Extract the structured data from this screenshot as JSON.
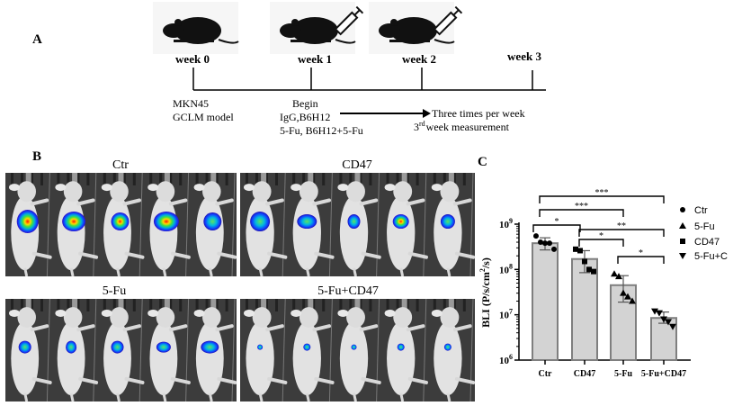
{
  "panel_a": {
    "label": "A",
    "weeks": [
      "week 0",
      "week 1",
      "week 2",
      "week 3"
    ],
    "note_week0": [
      "MKN45",
      "GCLM model"
    ],
    "note_week1": [
      "Begin",
      "IgG,B6H12",
      "5-Fu, B6H12+5-Fu"
    ],
    "note_arrow": "Three times per week",
    "note_measure_sup": "rd",
    "note_measure_pre": "3",
    "note_measure_post": "week measurement"
  },
  "panel_b": {
    "label": "B",
    "groups": [
      "Ctr",
      "CD47",
      "5-Fu",
      "5-Fu+CD47"
    ]
  },
  "chart_data": {
    "label": "C",
    "type": "bar",
    "categories": [
      "Ctr",
      "CD47",
      "5-Fu",
      "5-Fu+CD47"
    ],
    "values": [
      380000000,
      170000000,
      45000000,
      8500000
    ],
    "error_low": [
      270000000,
      85000000,
      19000000,
      6500000
    ],
    "error_high": [
      500000000,
      260000000,
      73000000,
      11500000
    ],
    "points": [
      [
        550000000,
        400000000,
        380000000,
        380000000,
        280000000
      ],
      [
        280000000,
        260000000,
        150000000,
        100000000,
        90000000
      ],
      [
        80000000,
        70000000,
        30000000,
        25000000,
        20000000
      ],
      [
        12000000,
        11000000,
        8000000,
        7000000,
        5500000
      ]
    ],
    "markers": [
      "circle",
      "square",
      "triangle-up",
      "triangle-down"
    ],
    "ylabel": "BLI (P/s/cm",
    "ylabel_sup": "2",
    "ylabel_end": "/s)",
    "yscale": "log",
    "ylim": [
      1000000,
      1000000000
    ],
    "yticks": [
      "10",
      "10",
      "10",
      "10"
    ],
    "ytick_exps": [
      "6",
      "7",
      "8",
      "9"
    ],
    "legend": [
      {
        "name": "Ctr",
        "marker": "circle"
      },
      {
        "name": "5-Fu",
        "marker": "triangle-up"
      },
      {
        "name": "CD47",
        "marker": "square"
      },
      {
        "name": "5-Fu+C",
        "marker": "triangle-down"
      }
    ],
    "legend_position": "right",
    "significance": [
      {
        "from": 0,
        "to": 3,
        "label": "***"
      },
      {
        "from": 0,
        "to": 2,
        "label": "***"
      },
      {
        "from": 0,
        "to": 1,
        "label": "*"
      },
      {
        "from": 1,
        "to": 3,
        "label": "**"
      },
      {
        "from": 1,
        "to": 2,
        "label": "*"
      },
      {
        "from": 2,
        "to": 3,
        "label": "*"
      }
    ],
    "bar_color": "#d3d3d3",
    "bar_edge": "#7f7f7f"
  }
}
